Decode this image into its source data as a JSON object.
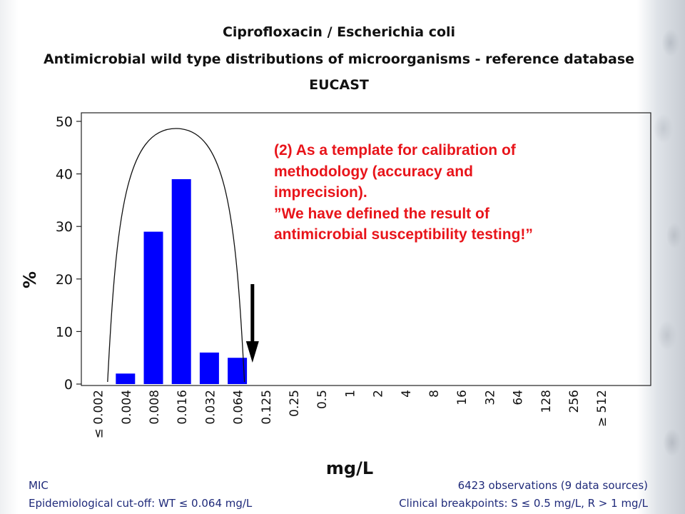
{
  "chart_data": {
    "type": "bar",
    "title": "Ciprofloxacin / Escherichia coli",
    "subtitle": "Antimicrobial wild type distributions of microorganisms - reference database",
    "source": "EUCAST",
    "xlabel": "mg/L",
    "ylabel": "%",
    "ylim": [
      0,
      50
    ],
    "yticks": [
      0,
      10,
      20,
      30,
      40,
      50
    ],
    "categories": [
      "≤ 0.002",
      "0.004",
      "0.008",
      "0.016",
      "0.032",
      "0.064",
      "0.125",
      "0.25",
      "0.5",
      "1",
      "2",
      "4",
      "8",
      "16",
      "32",
      "64",
      "128",
      "256",
      "≥ 512"
    ],
    "values": [
      0,
      2,
      29,
      39,
      6,
      5,
      0,
      0,
      0,
      0,
      0,
      0,
      0,
      0,
      0,
      0,
      0,
      0,
      0
    ],
    "bar_color": "#0000ff",
    "annotations": {
      "note_lines": [
        "(2) As a template for calibration of",
        "methodology (accuracy and",
        "imprecision).",
        "”We have defined the result of",
        "antimicrobial susceptibility testing!”"
      ],
      "note_color": "#e8141a",
      "arrow_at_category": "0.125",
      "arc_spans": [
        "0.004",
        "0.064"
      ]
    }
  },
  "footer": {
    "left_line1": "MIC",
    "left_line2": "Epidemiological cut-off: WT ≤ 0.064 mg/L",
    "right_line1": "6423 observations (9 data sources)",
    "right_line2": "Clinical breakpoints: S ≤ 0.5 mg/L, R > 1 mg/L"
  }
}
